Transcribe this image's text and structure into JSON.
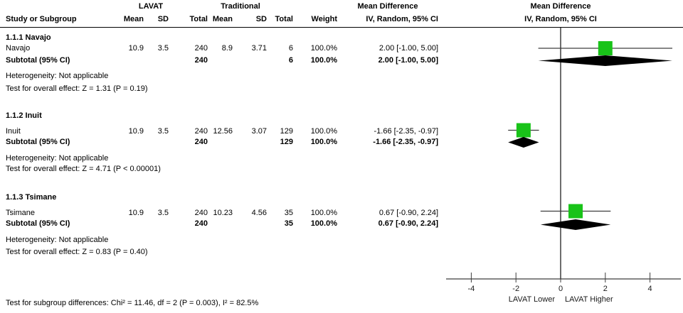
{
  "colors": {
    "square_green": "#19C319",
    "diamond_black": "#000000",
    "line_gray": "#3d3d3d"
  },
  "header": {
    "group1": "LAVAT",
    "group2": "Traditional",
    "md_text_title": "Mean Difference",
    "md_text_sub": "IV, Random, 95% CI",
    "md_plot_title": "Mean Difference",
    "md_plot_sub": "IV, Random, 95% CI",
    "col_study": "Study or Subgroup",
    "col_mean1": "Mean",
    "col_sd1": "SD",
    "col_total1": "Total",
    "col_mean2": "Mean",
    "col_sd2": "SD",
    "col_total2": "Total",
    "col_weight": "Weight"
  },
  "subgroups": [
    {
      "title": "1.1.1 Navajo",
      "studies": [
        {
          "name": "Navajo",
          "mean1": "10.9",
          "sd1": "3.5",
          "total1": "240",
          "mean2": "8.9",
          "sd2": "3.71",
          "total2": "6",
          "weight": "100.0%",
          "ci": "2.00 [-1.00, 5.00]"
        }
      ],
      "subtotal": {
        "label": "Subtotal (95% CI)",
        "total1": "240",
        "total2": "6",
        "weight": "100.0%",
        "ci": "2.00 [-1.00, 5.00]"
      },
      "heterogeneity": "Heterogeneity: Not applicable",
      "overall": "Test for overall effect: Z = 1.31 (P = 0.19)"
    },
    {
      "title": "1.1.2 Inuit",
      "studies": [
        {
          "name": "Inuit",
          "mean1": "10.9",
          "sd1": "3.5",
          "total1": "240",
          "mean2": "12.56",
          "sd2": "3.07",
          "total2": "129",
          "weight": "100.0%",
          "ci": "-1.66 [-2.35, -0.97]"
        }
      ],
      "subtotal": {
        "label": "Subtotal (95% CI)",
        "total1": "240",
        "total2": "129",
        "weight": "100.0%",
        "ci": "-1.66 [-2.35, -0.97]"
      },
      "heterogeneity": "Heterogeneity: Not applicable",
      "overall": "Test for overall effect: Z = 4.71 (P < 0.00001)"
    },
    {
      "title": "1.1.3 Tsimane",
      "studies": [
        {
          "name": "Tsimane",
          "mean1": "10.9",
          "sd1": "3.5",
          "total1": "240",
          "mean2": "10.23",
          "sd2": "4.56",
          "total2": "35",
          "weight": "100.0%",
          "ci": "0.67 [-0.90, 2.24]"
        }
      ],
      "subtotal": {
        "label": "Subtotal (95% CI)",
        "total1": "240",
        "total2": "35",
        "weight": "100.0%",
        "ci": "0.67 [-0.90, 2.24]"
      },
      "heterogeneity": "Heterogeneity: Not applicable",
      "overall": "Test for overall effect: Z = 0.83 (P = 0.40)"
    }
  ],
  "footer": {
    "subgroup_diff": "Test for subgroup differences: Chi² = 11.46, df = 2 (P = 0.003), I² = 82.5%"
  },
  "chart_data": {
    "type": "forest",
    "effect_measure": "Mean Difference",
    "model": "IV, Random, 95% CI",
    "xlim": [
      -5.1,
      5.4
    ],
    "ticks": [
      -4,
      -2,
      0,
      2,
      4
    ],
    "left_caption": "LAVAT Lower",
    "right_caption": "LAVAT Higher",
    "subgroups": [
      {
        "name": "1.1.1 Navajo",
        "studies": [
          {
            "study": "Navajo",
            "md": 2.0,
            "ci_low": -1.0,
            "ci_high": 5.0,
            "weight": 100.0
          }
        ],
        "subtotal": {
          "md": 2.0,
          "ci_low": -1.0,
          "ci_high": 5.0
        }
      },
      {
        "name": "1.1.2 Inuit",
        "studies": [
          {
            "study": "Inuit",
            "md": -1.66,
            "ci_low": -2.35,
            "ci_high": -0.97,
            "weight": 100.0
          }
        ],
        "subtotal": {
          "md": -1.66,
          "ci_low": -2.35,
          "ci_high": -0.97
        }
      },
      {
        "name": "1.1.3 Tsimane",
        "studies": [
          {
            "study": "Tsimane",
            "md": 0.67,
            "ci_low": -0.9,
            "ci_high": 2.24,
            "weight": 100.0
          }
        ],
        "subtotal": {
          "md": 0.67,
          "ci_low": -0.9,
          "ci_high": 2.24
        }
      }
    ]
  }
}
